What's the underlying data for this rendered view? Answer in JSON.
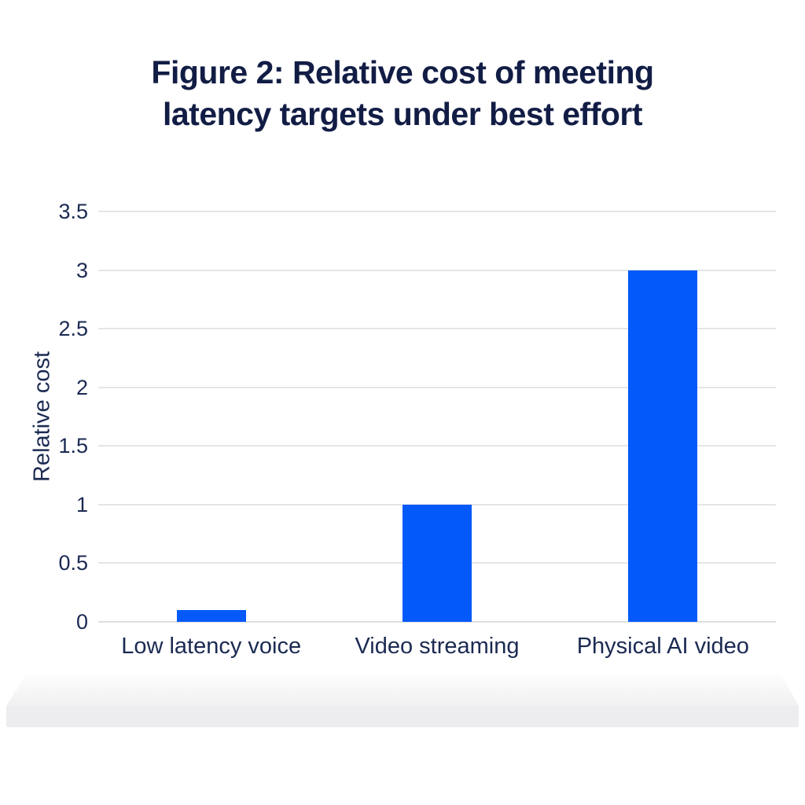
{
  "chart_data": {
    "type": "bar",
    "title": "Figure 2: Relative cost of meeting latency targets under best effort",
    "title_lines": [
      "Figure 2: Relative cost of meeting",
      "latency targets under best effort"
    ],
    "categories": [
      "Low latency voice",
      "Video streaming",
      "Physical AI video"
    ],
    "values": [
      0.1,
      1,
      3
    ],
    "xlabel": "",
    "ylabel": "Relative cost",
    "ylim": [
      0,
      3.5
    ],
    "yticks": [
      0,
      0.5,
      1,
      1.5,
      2,
      2.5,
      3,
      3.5
    ],
    "grid": true,
    "legend": false,
    "colors": {
      "bar": "#035af8",
      "gridline": "#e5e5e8",
      "title_text": "#121d45",
      "axis_text": "#1b2a52",
      "background": "#ffffff",
      "pedestal": "#ededef"
    }
  }
}
